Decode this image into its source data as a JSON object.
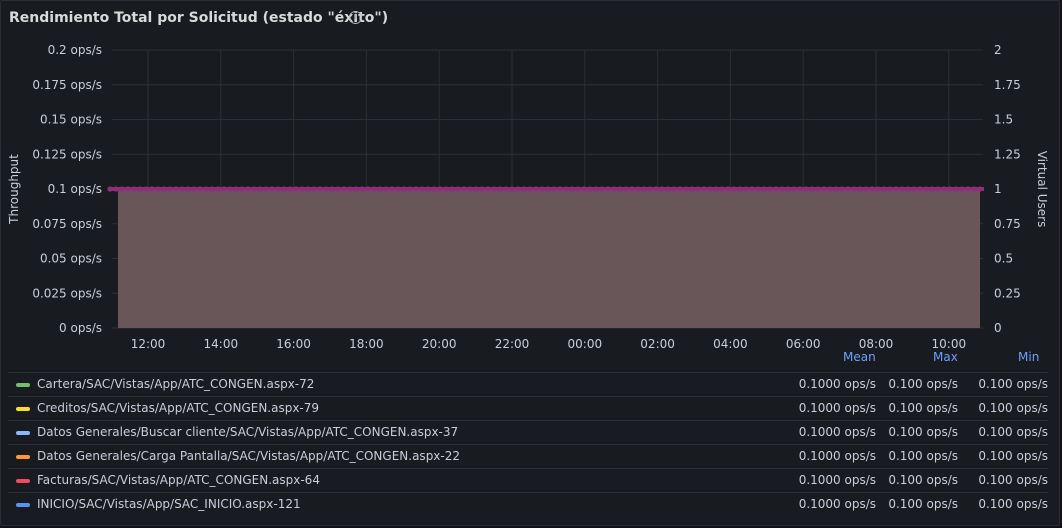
{
  "panel": {
    "title": "Rendimiento Total por Solicitud (estado \"éxito\")",
    "info_icon": "info-icon"
  },
  "chart_data": {
    "type": "area",
    "x_ticks": [
      "12:00",
      "14:00",
      "16:00",
      "18:00",
      "20:00",
      "22:00",
      "00:00",
      "02:00",
      "04:00",
      "06:00",
      "08:00",
      "10:00"
    ],
    "y_left": {
      "label": "Throughput",
      "ticks": [
        "0 ops/s",
        "0.025 ops/s",
        "0.05 ops/s",
        "0.075 ops/s",
        "0.1 ops/s",
        "0.125 ops/s",
        "0.15 ops/s",
        "0.175 ops/s",
        "0.2 ops/s"
      ],
      "range": [
        0,
        0.2
      ]
    },
    "y_right": {
      "label": "Virtual Users",
      "ticks": [
        "0",
        "0.25",
        "0.5",
        "0.75",
        "1",
        "1.25",
        "1.5",
        "1.75",
        "2"
      ],
      "range": [
        0,
        2
      ]
    },
    "series_value": 0.1,
    "virtual_users": 1,
    "fill_color": "#6e5a5c",
    "line_color": "#8f2f7c",
    "grid": true,
    "legend_placement": "bottom",
    "legend_columns": [
      "Mean",
      "Max",
      "Min"
    ],
    "series": [
      {
        "name": "Cartera/SAC/Vistas/App/ATC_CONGEN.aspx-72",
        "color": "#73bf69",
        "mean": "0.1000 ops/s",
        "max": "0.100 ops/s",
        "min": "0.100 ops/s"
      },
      {
        "name": "Creditos/SAC/Vistas/App/ATC_CONGEN.aspx-79",
        "color": "#fade2a",
        "mean": "0.1000 ops/s",
        "max": "0.100 ops/s",
        "min": "0.100 ops/s"
      },
      {
        "name": "Datos Generales/Buscar cliente/SAC/Vistas/App/ATC_CONGEN.aspx-37",
        "color": "#8ab8ff",
        "mean": "0.1000 ops/s",
        "max": "0.100 ops/s",
        "min": "0.100 ops/s"
      },
      {
        "name": "Datos Generales/Carga Pantalla/SAC/Vistas/App/ATC_CONGEN.aspx-22",
        "color": "#ff9830",
        "mean": "0.1000 ops/s",
        "max": "0.100 ops/s",
        "min": "0.100 ops/s"
      },
      {
        "name": "Facturas/SAC/Vistas/App/ATC_CONGEN.aspx-64",
        "color": "#f2495c",
        "mean": "0.1000 ops/s",
        "max": "0.100 ops/s",
        "min": "0.100 ops/s"
      },
      {
        "name": "INICIO/SAC/Vistas/App/SAC_INICIO.aspx-121",
        "color": "#5794f2",
        "mean": "0.1000 ops/s",
        "max": "0.100 ops/s",
        "min": "0.100 ops/s"
      }
    ]
  }
}
